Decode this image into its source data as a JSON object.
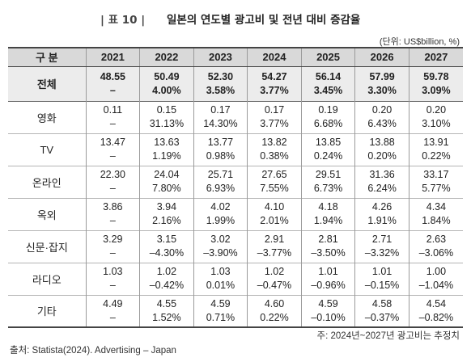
{
  "title": {
    "label": "| 표 10 |",
    "text": "일본의 연도별 광고비 및 전년 대비 증감율"
  },
  "unit": "(단위: US$billion, %)",
  "table": {
    "header": [
      "구 분",
      "2021",
      "2022",
      "2023",
      "2024",
      "2025",
      "2026",
      "2027"
    ],
    "rows": [
      {
        "category": "전체",
        "values": [
          "48.55",
          "50.49",
          "52.30",
          "54.27",
          "56.14",
          "57.99",
          "59.78"
        ],
        "growth": [
          "–",
          "4.00%",
          "3.58%",
          "3.77%",
          "3.45%",
          "3.30%",
          "3.09%"
        ]
      },
      {
        "category": "영화",
        "values": [
          "0.11",
          "0.15",
          "0.17",
          "0.17",
          "0.19",
          "0.20",
          "0.20"
        ],
        "growth": [
          "–",
          "31.13%",
          "14.30%",
          "3.77%",
          "6.68%",
          "6.43%",
          "3.10%"
        ]
      },
      {
        "category": "TV",
        "values": [
          "13.47",
          "13.63",
          "13.77",
          "13.82",
          "13.85",
          "13.88",
          "13.91"
        ],
        "growth": [
          "–",
          "1.19%",
          "0.98%",
          "0.38%",
          "0.24%",
          "0.20%",
          "0.22%"
        ]
      },
      {
        "category": "온라인",
        "values": [
          "22.30",
          "24.04",
          "25.71",
          "27.65",
          "29.51",
          "31.36",
          "33.17"
        ],
        "growth": [
          "–",
          "7.80%",
          "6.93%",
          "7.55%",
          "6.73%",
          "6.24%",
          "5.77%"
        ]
      },
      {
        "category": "옥외",
        "values": [
          "3.86",
          "3.94",
          "4.02",
          "4.10",
          "4.18",
          "4.26",
          "4.34"
        ],
        "growth": [
          "–",
          "2.16%",
          "1.99%",
          "2.01%",
          "1.94%",
          "1.91%",
          "1.84%"
        ]
      },
      {
        "category": "신문·잡지",
        "values": [
          "3.29",
          "3.15",
          "3.02",
          "2.91",
          "2.81",
          "2.71",
          "2.63"
        ],
        "growth": [
          "–",
          "–4.30%",
          "–3.90%",
          "–3.77%",
          "–3.50%",
          "–3.32%",
          "–3.06%"
        ]
      },
      {
        "category": "라디오",
        "values": [
          "1.03",
          "1.02",
          "1.03",
          "1.02",
          "1.01",
          "1.01",
          "1.00"
        ],
        "growth": [
          "–",
          "–0.42%",
          "0.01%",
          "–0.47%",
          "–0.96%",
          "–0.15%",
          "–1.04%"
        ]
      },
      {
        "category": "기타",
        "values": [
          "4.49",
          "4.55",
          "4.59",
          "4.60",
          "4.59",
          "4.58",
          "4.54"
        ],
        "growth": [
          "–",
          "1.52%",
          "0.71%",
          "0.22%",
          "–0.10%",
          "–0.37%",
          "–0.82%"
        ]
      }
    ]
  },
  "note": "주: 2024년~2027년 광고비는 추정치",
  "source": "출처: Statista(2024). Advertising – Japan"
}
